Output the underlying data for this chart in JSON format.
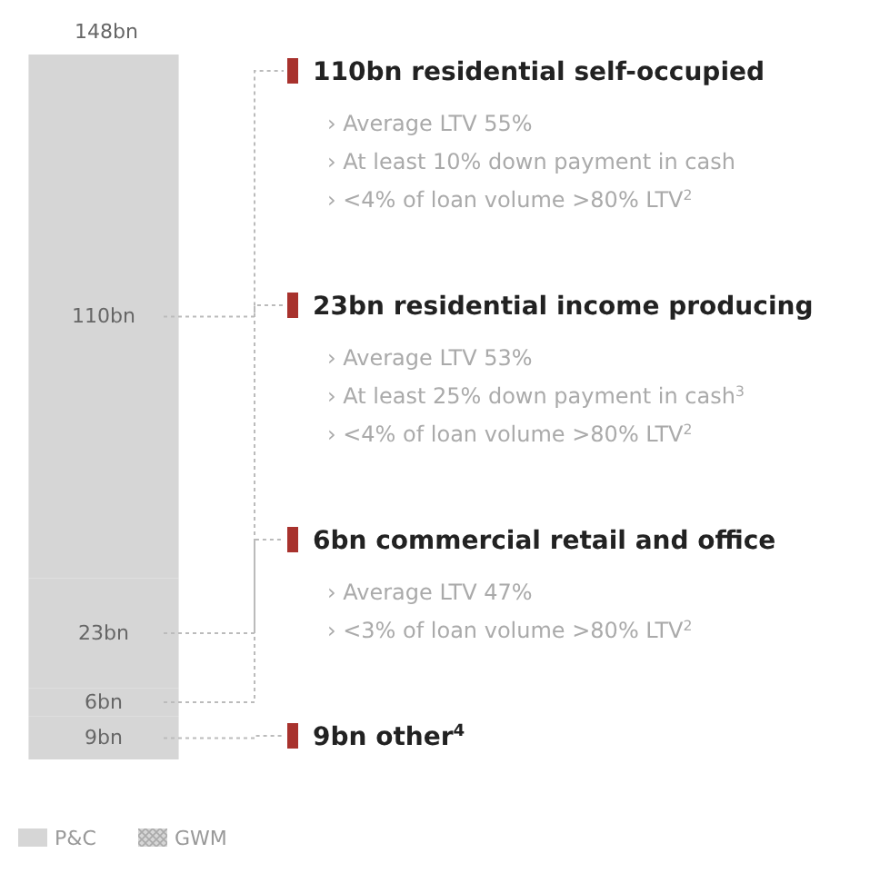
{
  "chart_data": {
    "type": "bar",
    "stacked": true,
    "categories": [
      null
    ],
    "series": [
      {
        "name": "9bn other$^{4}$",
        "color": "#d6d6d6",
        "values": [
          9
        ],
        "value_labels": [
          "9bn"
        ]
      },
      {
        "name": "6bn commercial retail and office",
        "color": "#d6d6d6",
        "values": [
          6
        ],
        "value_labels": [
          "6bn"
        ]
      },
      {
        "name": "23bn residential income producing",
        "color": "#d6d6d6",
        "values": [
          23
        ],
        "value_labels": [
          "23bn"
        ]
      },
      {
        "name": "110bn residential self-occupied",
        "color": "#d6d6d6",
        "values": [
          110
        ],
        "value_labels": [
          "110bn"
        ]
      }
    ],
    "totals": [
      "148bn"
    ],
    "annotations": [
      "› Average LTV 55%\n› At least 10% down payment in cash\n› <4% of loan volume >80% LTV$^{2}$",
      "› Average LTV 53%\n› At least 25% down payment in cash$^{3}$\n› <4% of loan volume >80% LTV$^{2}$",
      "› Average LTV 47%\n› <3% of loan volume >80% LTV$^{2}$",
      "P&C",
      "GWM"
    ]
  }
}
